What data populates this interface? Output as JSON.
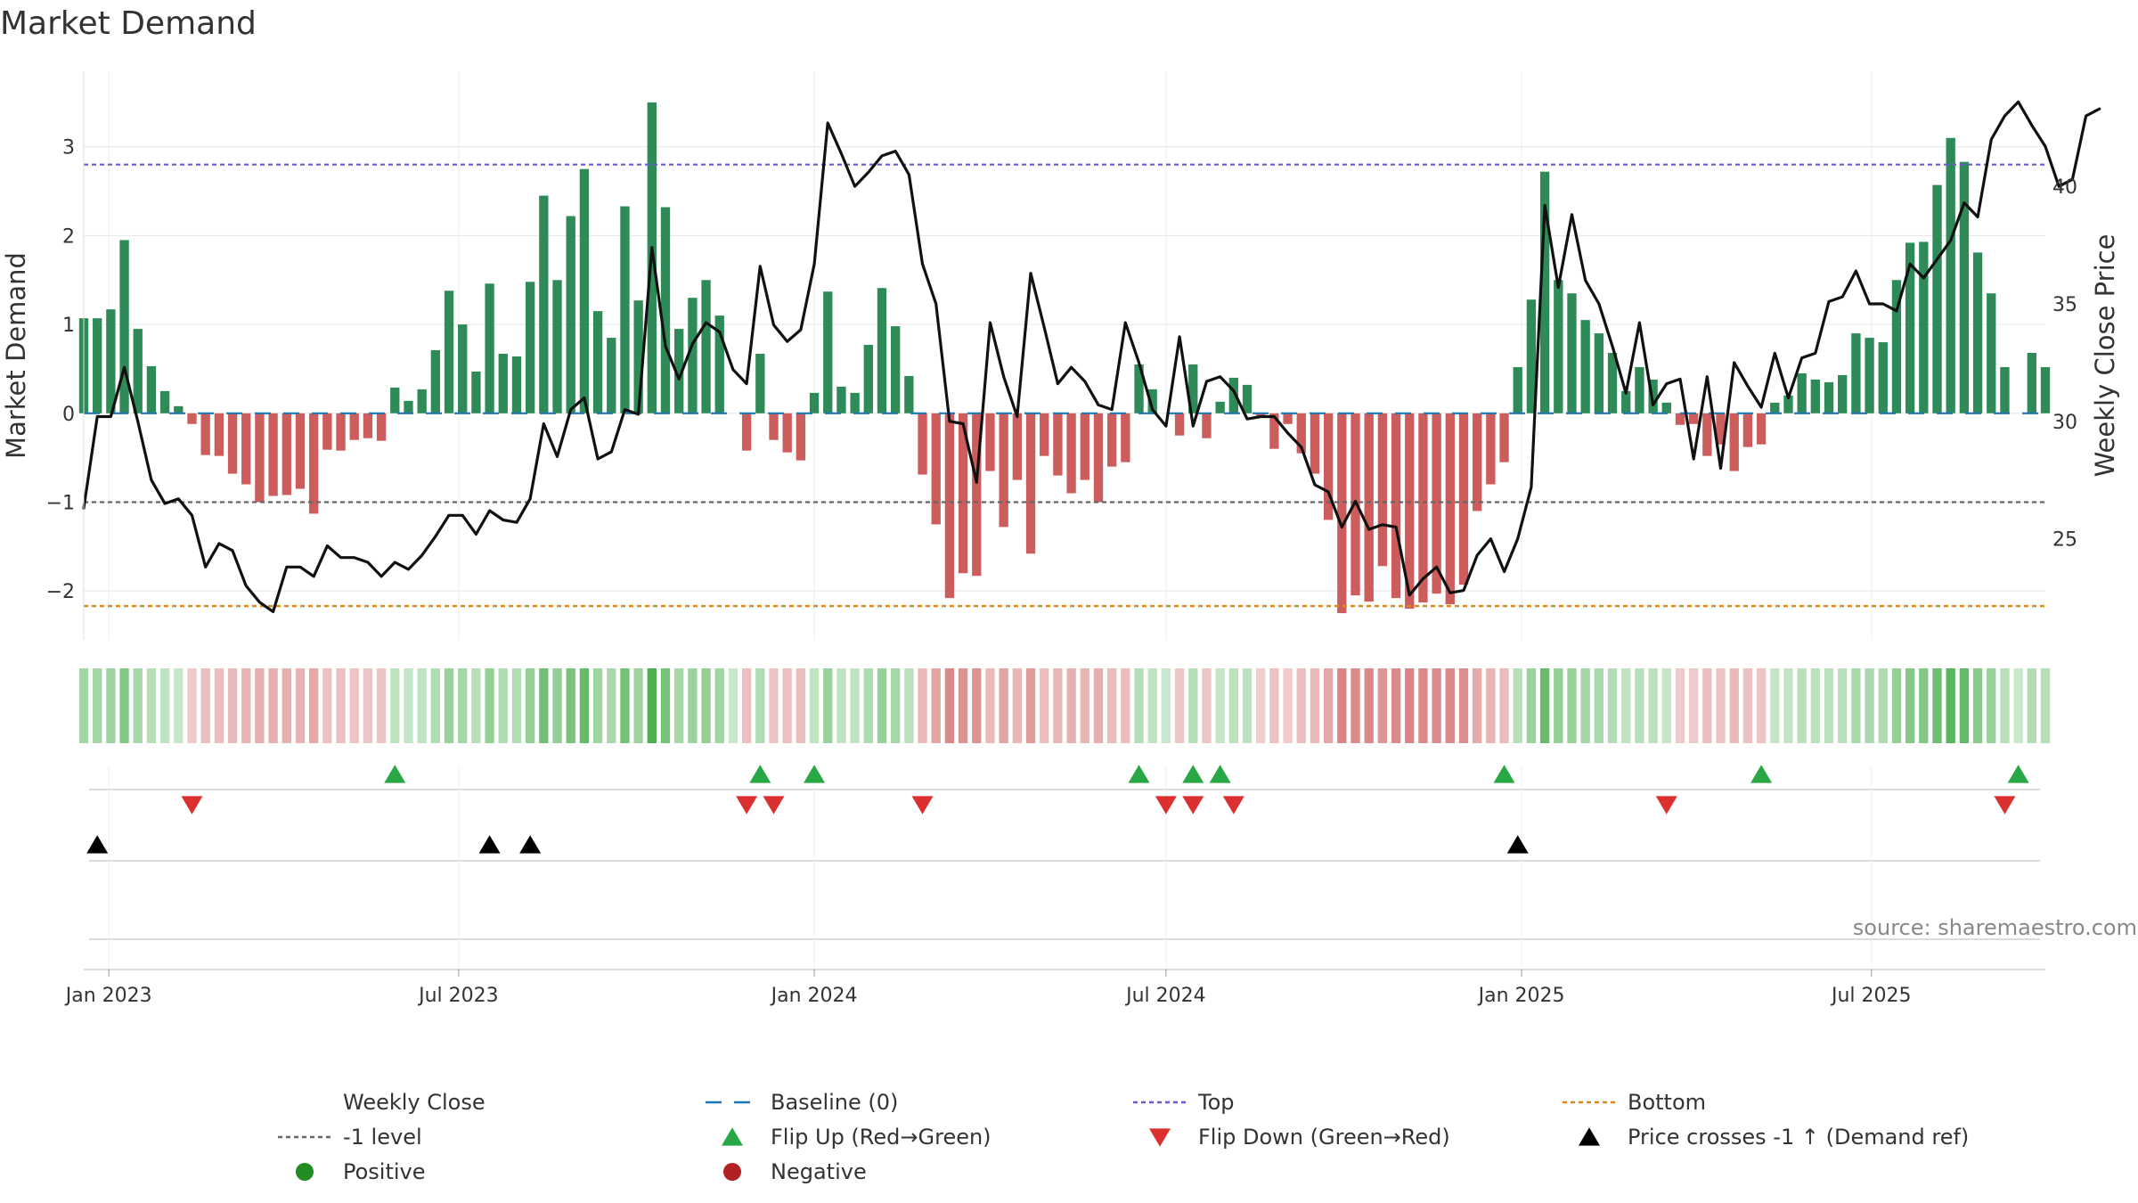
{
  "title": "Market Demand",
  "source": "source: sharemaestro.com",
  "chart_data": {
    "type": "bar",
    "title": "Market Demand",
    "ylabel": "Market Demand",
    "y2label": "Weekly Close Price",
    "xlabel": "",
    "ylim": [
      -2.55,
      3.85
    ],
    "y2lim": [
      20.7,
      44.9
    ],
    "yticks": [
      -2,
      -1,
      0,
      1,
      2,
      3
    ],
    "y2ticks": [
      25,
      30,
      35,
      40
    ],
    "xrange": [
      "2022-12-19",
      "2025-09-29"
    ],
    "xticks": [
      {
        "date": "2023-01-01",
        "label": "Jan 2023"
      },
      {
        "date": "2023-07-01",
        "label": "Jul 2023"
      },
      {
        "date": "2024-01-01",
        "label": "Jan 2024"
      },
      {
        "date": "2024-07-01",
        "label": "Jul 2024"
      },
      {
        "date": "2025-01-01",
        "label": "Jan 2025"
      },
      {
        "date": "2025-07-01",
        "label": "Jul 2025"
      }
    ],
    "start_date": "2022-12-19",
    "interval_days": 7,
    "reference_lines": {
      "baseline": 0,
      "top": 2.8,
      "minus_one": -1,
      "bottom": -2.17
    },
    "demand": [
      1.07,
      1.07,
      1.17,
      1.95,
      0.95,
      0.53,
      0.25,
      0.08,
      -0.12,
      -0.47,
      -0.48,
      -0.68,
      -0.8,
      -1.0,
      -0.93,
      -0.92,
      -0.85,
      -1.13,
      -0.41,
      -0.42,
      -0.3,
      -0.28,
      -0.31,
      0.29,
      0.14,
      0.27,
      0.71,
      1.38,
      1.0,
      0.47,
      1.46,
      0.67,
      0.64,
      1.48,
      2.45,
      1.5,
      2.22,
      2.75,
      1.15,
      0.85,
      2.33,
      1.27,
      3.5,
      2.32,
      0.95,
      1.3,
      1.5,
      1.1,
      0.0,
      -0.42,
      0.67,
      -0.3,
      -0.44,
      -0.53,
      0.23,
      1.37,
      0.3,
      0.23,
      0.77,
      1.41,
      0.98,
      0.42,
      -0.69,
      -1.25,
      -2.08,
      -1.8,
      -1.83,
      -0.65,
      -1.28,
      -0.75,
      -1.58,
      -0.48,
      -0.7,
      -0.9,
      -0.75,
      -1.0,
      -0.6,
      -0.55,
      0.55,
      0.27,
      0.0,
      -0.25,
      0.55,
      -0.28,
      0.13,
      0.4,
      0.32,
      -0.03,
      -0.4,
      -0.12,
      -0.45,
      -0.68,
      -1.2,
      -2.25,
      -2.05,
      -2.12,
      -1.72,
      -2.08,
      -2.2,
      -2.13,
      -2.03,
      -2.15,
      -1.93,
      -1.1,
      -0.8,
      -0.55,
      0.52,
      1.28,
      2.72,
      1.5,
      1.35,
      1.05,
      0.9,
      0.68,
      0.25,
      0.52,
      0.38,
      0.12,
      -0.13,
      -0.12,
      -0.48,
      -0.35,
      -0.65,
      -0.38,
      -0.35,
      0.12,
      0.2,
      0.45,
      0.38,
      0.35,
      0.43,
      0.9,
      0.85,
      0.8,
      1.5,
      1.92,
      1.93,
      2.57,
      3.1,
      2.83,
      1.81,
      1.35,
      0.52,
      0.0,
      0.68,
      0.52
    ],
    "close": [
      26.3,
      30.2,
      30.2,
      32.3,
      30.0,
      27.5,
      26.5,
      26.7,
      26.0,
      23.8,
      24.8,
      24.5,
      23.0,
      22.3,
      21.9,
      23.8,
      23.8,
      23.4,
      24.7,
      24.2,
      24.2,
      24.0,
      23.4,
      24.0,
      23.7,
      24.3,
      25.1,
      26.0,
      26.0,
      25.2,
      26.2,
      25.8,
      25.7,
      26.7,
      29.9,
      28.5,
      30.5,
      31.0,
      28.4,
      28.7,
      30.5,
      30.3,
      37.4,
      33.2,
      31.8,
      33.3,
      34.2,
      33.8,
      32.2,
      31.6,
      36.6,
      34.1,
      33.4,
      33.9,
      36.7,
      42.7,
      41.4,
      40.0,
      40.6,
      41.3,
      41.5,
      40.5,
      36.7,
      35.0,
      30.0,
      29.9,
      27.4,
      34.2,
      31.9,
      30.2,
      36.3,
      34.0,
      31.6,
      32.3,
      31.7,
      30.7,
      30.5,
      34.2,
      32.5,
      30.5,
      29.8,
      33.6,
      29.8,
      31.7,
      31.9,
      31.3,
      30.1,
      30.2,
      30.2,
      29.5,
      28.9,
      27.3,
      27.0,
      25.5,
      26.6,
      25.4,
      25.6,
      25.5,
      22.6,
      23.3,
      23.8,
      22.7,
      22.8,
      24.3,
      25.0,
      23.6,
      25.0,
      27.2,
      39.2,
      35.7,
      38.8,
      36.0,
      35.0,
      33.2,
      31.2,
      34.2,
      30.7,
      31.6,
      31.8,
      28.4,
      31.9,
      28.0,
      32.5,
      31.5,
      30.6,
      32.9,
      31.0,
      32.7,
      32.9,
      35.1,
      35.3,
      36.4,
      35.0,
      35.0,
      34.7,
      36.7,
      36.1,
      36.9,
      37.7,
      39.3,
      38.7,
      42.0,
      43.0,
      43.6,
      42.6,
      41.7,
      40.0,
      40.3,
      43.0,
      43.3
    ],
    "flip_up_weeks": [
      23,
      50,
      54,
      78,
      82,
      84,
      105,
      124,
      143
    ],
    "flip_down_weeks": [
      8,
      49,
      51,
      62,
      80,
      82,
      85,
      117,
      142
    ],
    "price_cross_weeks": [
      1,
      30,
      33,
      106
    ],
    "colors": {
      "positive_bar": "#2e8b57",
      "negative_bar": "#cd5c5c",
      "close_line": "#111111",
      "baseline": "#1f77b4",
      "top": "#6a5acd",
      "minus_one": "#666666",
      "bottom": "#d98c1e",
      "flip_up": "#28a745",
      "flip_down": "#dc3030",
      "price_cross": "#000000",
      "positive_dot": "#228b22",
      "negative_dot": "#b22222",
      "grid": "#e6e6e6"
    },
    "legend": [
      {
        "key": "close",
        "label": "Weekly Close",
        "marker": "line-solid"
      },
      {
        "key": "baseline",
        "label": "Baseline (0)",
        "marker": "line-dash"
      },
      {
        "key": "top",
        "label": "Top",
        "marker": "line-dot"
      },
      {
        "key": "bottom",
        "label": "Bottom",
        "marker": "line-dot"
      },
      {
        "key": "minus_one",
        "label": "-1 level",
        "marker": "line-dot"
      },
      {
        "key": "flip_up",
        "label": "Flip Up (Red→Green)",
        "marker": "triangle-up"
      },
      {
        "key": "flip_down",
        "label": "Flip Down (Green→Red)",
        "marker": "triangle-down"
      },
      {
        "key": "price_cross",
        "label": "Price crosses -1 ↑ (Demand ref)",
        "marker": "triangle-up"
      },
      {
        "key": "positive_dot",
        "label": "Positive",
        "marker": "circle"
      },
      {
        "key": "negative_dot",
        "label": "Negative",
        "marker": "circle"
      }
    ]
  }
}
